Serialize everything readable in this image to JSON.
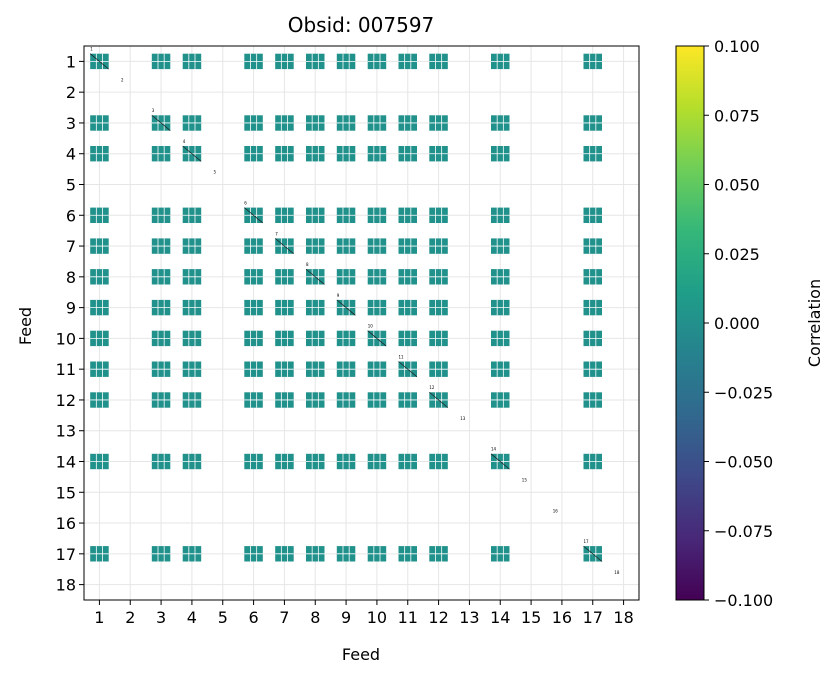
{
  "chart_data": {
    "type": "heatmap",
    "title": "Obsid: 007597",
    "xlabel": "Feed",
    "ylabel": "Feed",
    "feeds": [
      "1",
      "2",
      "3",
      "4",
      "5",
      "6",
      "7",
      "8",
      "9",
      "10",
      "11",
      "12",
      "13",
      "14",
      "15",
      "16",
      "17",
      "18"
    ],
    "active_feeds": [
      1,
      3,
      4,
      6,
      7,
      8,
      9,
      10,
      11,
      12,
      14,
      17
    ],
    "empty_feeds": [
      2,
      5,
      13,
      15,
      16,
      18
    ],
    "cell_value": 0.0,
    "grid": true,
    "colorbar": {
      "label": "Correlation",
      "vmin": -0.1,
      "vmax": 0.1,
      "ticks": [
        "0.100",
        "0.075",
        "0.050",
        "0.025",
        "0.000",
        "−0.025",
        "−0.050",
        "−0.075",
        "−0.100"
      ],
      "tick_values": [
        0.1,
        0.075,
        0.05,
        0.025,
        0,
        -0.025,
        -0.05,
        -0.075,
        -0.1
      ],
      "colormap": "viridis",
      "stops": [
        "#440154",
        "#482878",
        "#3e4989",
        "#31688e",
        "#26828e",
        "#1f9e89",
        "#35b779",
        "#6ece58",
        "#b5de2b",
        "#fde725"
      ]
    },
    "block_color": "#21918c"
  }
}
